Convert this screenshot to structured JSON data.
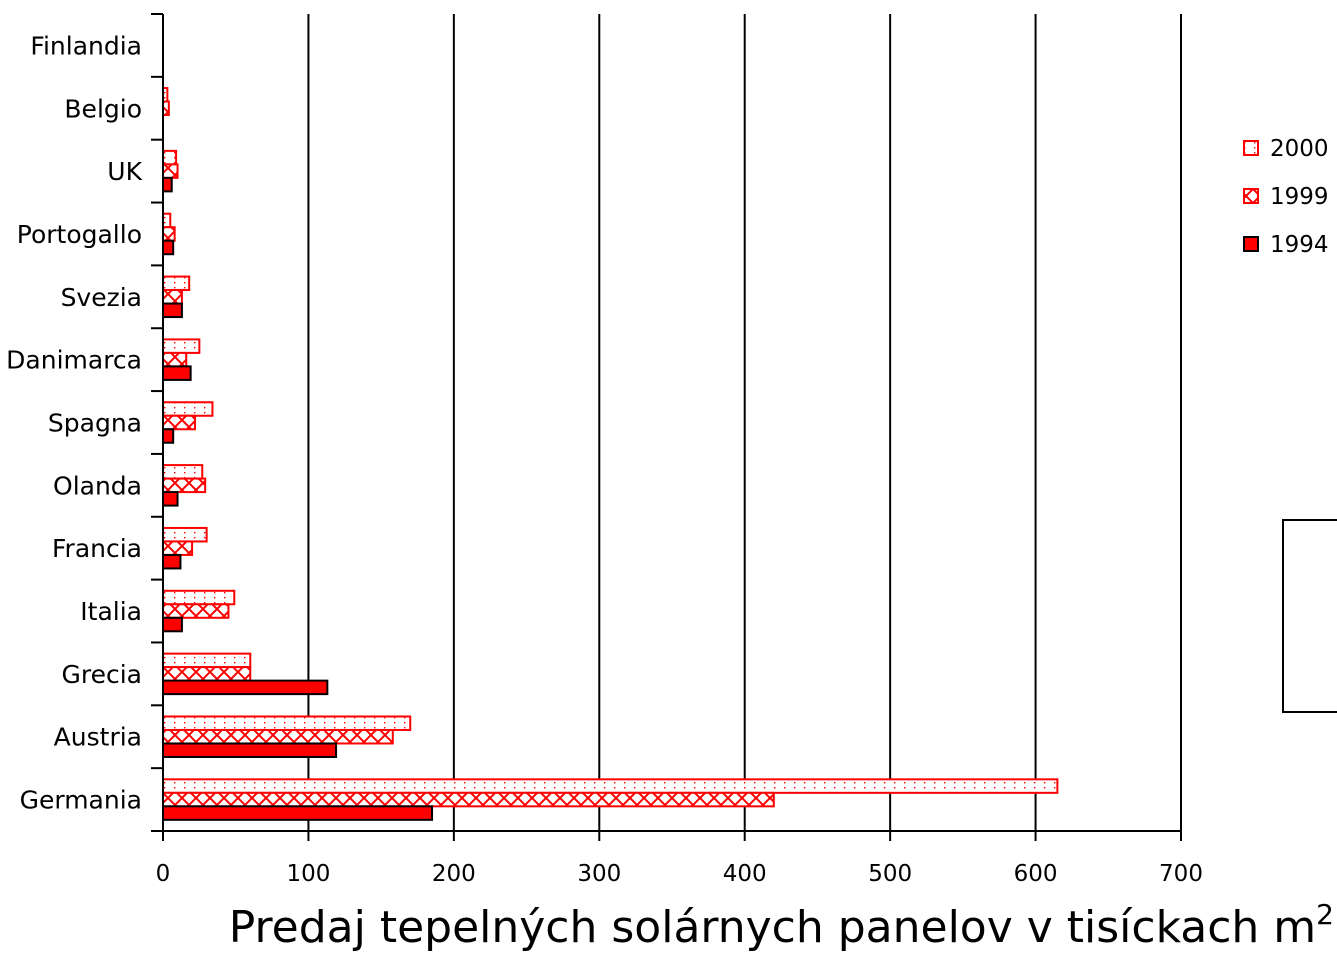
{
  "chart_data": {
    "type": "bar",
    "orientation": "horizontal",
    "categories": [
      "Finlandia",
      "Belgio",
      "UK",
      "Portogallo",
      "Svezia",
      "Danimarca",
      "Spagna",
      "Olanda",
      "Francia",
      "Italia",
      "Grecia",
      "Austria",
      "Germania"
    ],
    "series": [
      {
        "name": "2000",
        "pattern": "dots",
        "values": [
          0,
          3,
          9,
          5,
          18,
          25,
          34,
          27,
          30,
          49,
          60,
          170,
          615
        ]
      },
      {
        "name": "1999",
        "pattern": "cross",
        "values": [
          0,
          4,
          10,
          8,
          13,
          16,
          22,
          29,
          20,
          45,
          60,
          158,
          420
        ]
      },
      {
        "name": "1994",
        "pattern": "solid",
        "values": [
          0,
          0,
          6,
          7,
          13,
          19,
          7,
          10,
          12,
          13,
          113,
          119,
          185
        ]
      }
    ],
    "xlim": [
      0,
      700
    ],
    "x_ticks": [
      "0",
      "100",
      "200",
      "300",
      "400",
      "500",
      "600",
      "700"
    ],
    "x_title": "Predaj tepelných solárnych panelov v tisíckach m",
    "x_title_sup": "2",
    "grid": "vertical",
    "legend_position": "right",
    "colors": {
      "bar": "#ff0000",
      "outline": "#000000",
      "grid": "#000000"
    }
  }
}
